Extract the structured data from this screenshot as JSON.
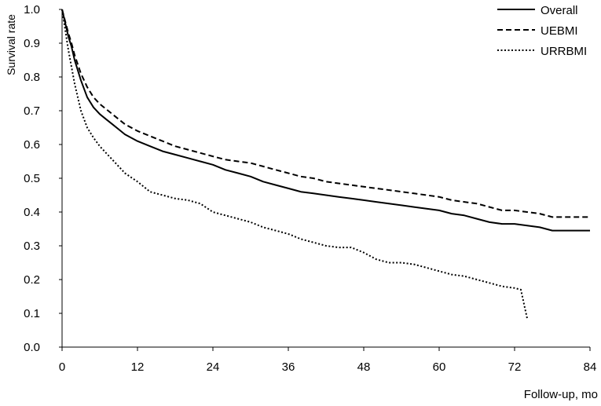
{
  "chart_data": {
    "type": "line",
    "title": "",
    "xlabel": "Follow-up, mo",
    "ylabel": "Survival rate",
    "xlim": [
      0,
      84
    ],
    "ylim": [
      0.0,
      1.0
    ],
    "x_ticks": [
      "0",
      "12",
      "24",
      "36",
      "48",
      "60",
      "72",
      "84"
    ],
    "y_ticks": [
      "0.0",
      "0.1",
      "0.2",
      "0.3",
      "0.4",
      "0.5",
      "0.6",
      "0.7",
      "0.8",
      "0.9",
      "1.0"
    ],
    "grid": false,
    "legend_position": "top-right",
    "series": [
      {
        "name": "Overall",
        "style": "solid",
        "color": "#000000",
        "x": [
          0,
          0.5,
          1,
          1.5,
          2,
          3,
          4,
          5,
          6,
          7,
          8,
          9,
          10,
          12,
          14,
          16,
          18,
          20,
          22,
          24,
          26,
          28,
          30,
          32,
          34,
          36,
          38,
          40,
          42,
          44,
          46,
          48,
          50,
          52,
          54,
          56,
          58,
          60,
          62,
          64,
          66,
          68,
          70,
          72,
          74,
          76,
          78,
          80,
          82,
          84
        ],
        "y": [
          1.0,
          0.96,
          0.92,
          0.89,
          0.85,
          0.79,
          0.74,
          0.71,
          0.69,
          0.675,
          0.66,
          0.645,
          0.63,
          0.61,
          0.595,
          0.58,
          0.57,
          0.56,
          0.55,
          0.54,
          0.525,
          0.515,
          0.505,
          0.49,
          0.48,
          0.47,
          0.46,
          0.455,
          0.45,
          0.445,
          0.44,
          0.435,
          0.43,
          0.425,
          0.42,
          0.415,
          0.41,
          0.405,
          0.395,
          0.39,
          0.38,
          0.37,
          0.365,
          0.365,
          0.36,
          0.355,
          0.345,
          0.345,
          0.345,
          0.345
        ]
      },
      {
        "name": "UEBMI",
        "style": "dashed",
        "color": "#000000",
        "x": [
          0,
          0.5,
          1,
          1.5,
          2,
          3,
          4,
          5,
          6,
          7,
          8,
          9,
          10,
          12,
          14,
          16,
          18,
          20,
          22,
          24,
          26,
          28,
          30,
          32,
          34,
          36,
          38,
          40,
          42,
          44,
          46,
          48,
          50,
          52,
          54,
          56,
          58,
          60,
          62,
          64,
          66,
          68,
          70,
          72,
          74,
          76,
          78,
          80,
          82,
          84
        ],
        "y": [
          1.0,
          0.965,
          0.93,
          0.9,
          0.865,
          0.81,
          0.77,
          0.74,
          0.72,
          0.705,
          0.69,
          0.675,
          0.66,
          0.64,
          0.625,
          0.61,
          0.595,
          0.585,
          0.575,
          0.565,
          0.555,
          0.55,
          0.545,
          0.535,
          0.525,
          0.515,
          0.505,
          0.5,
          0.49,
          0.485,
          0.48,
          0.475,
          0.47,
          0.465,
          0.46,
          0.455,
          0.45,
          0.445,
          0.435,
          0.43,
          0.425,
          0.415,
          0.405,
          0.405,
          0.4,
          0.395,
          0.385,
          0.385,
          0.385,
          0.385
        ]
      },
      {
        "name": "URRBMI",
        "style": "dotted",
        "color": "#000000",
        "x": [
          0,
          0.5,
          1,
          1.5,
          2,
          3,
          4,
          5,
          6,
          7,
          8,
          9,
          10,
          12,
          14,
          16,
          18,
          20,
          22,
          24,
          26,
          28,
          30,
          32,
          34,
          36,
          38,
          40,
          42,
          44,
          46,
          48,
          50,
          52,
          54,
          56,
          58,
          60,
          62,
          64,
          66,
          68,
          70,
          72,
          73,
          74
        ],
        "y": [
          1.0,
          0.94,
          0.88,
          0.83,
          0.78,
          0.7,
          0.65,
          0.62,
          0.595,
          0.575,
          0.555,
          0.535,
          0.515,
          0.49,
          0.46,
          0.45,
          0.44,
          0.435,
          0.425,
          0.4,
          0.39,
          0.38,
          0.37,
          0.355,
          0.345,
          0.335,
          0.32,
          0.31,
          0.3,
          0.295,
          0.295,
          0.28,
          0.26,
          0.25,
          0.25,
          0.245,
          0.235,
          0.225,
          0.215,
          0.21,
          0.2,
          0.19,
          0.18,
          0.175,
          0.17,
          0.085
        ]
      }
    ]
  }
}
